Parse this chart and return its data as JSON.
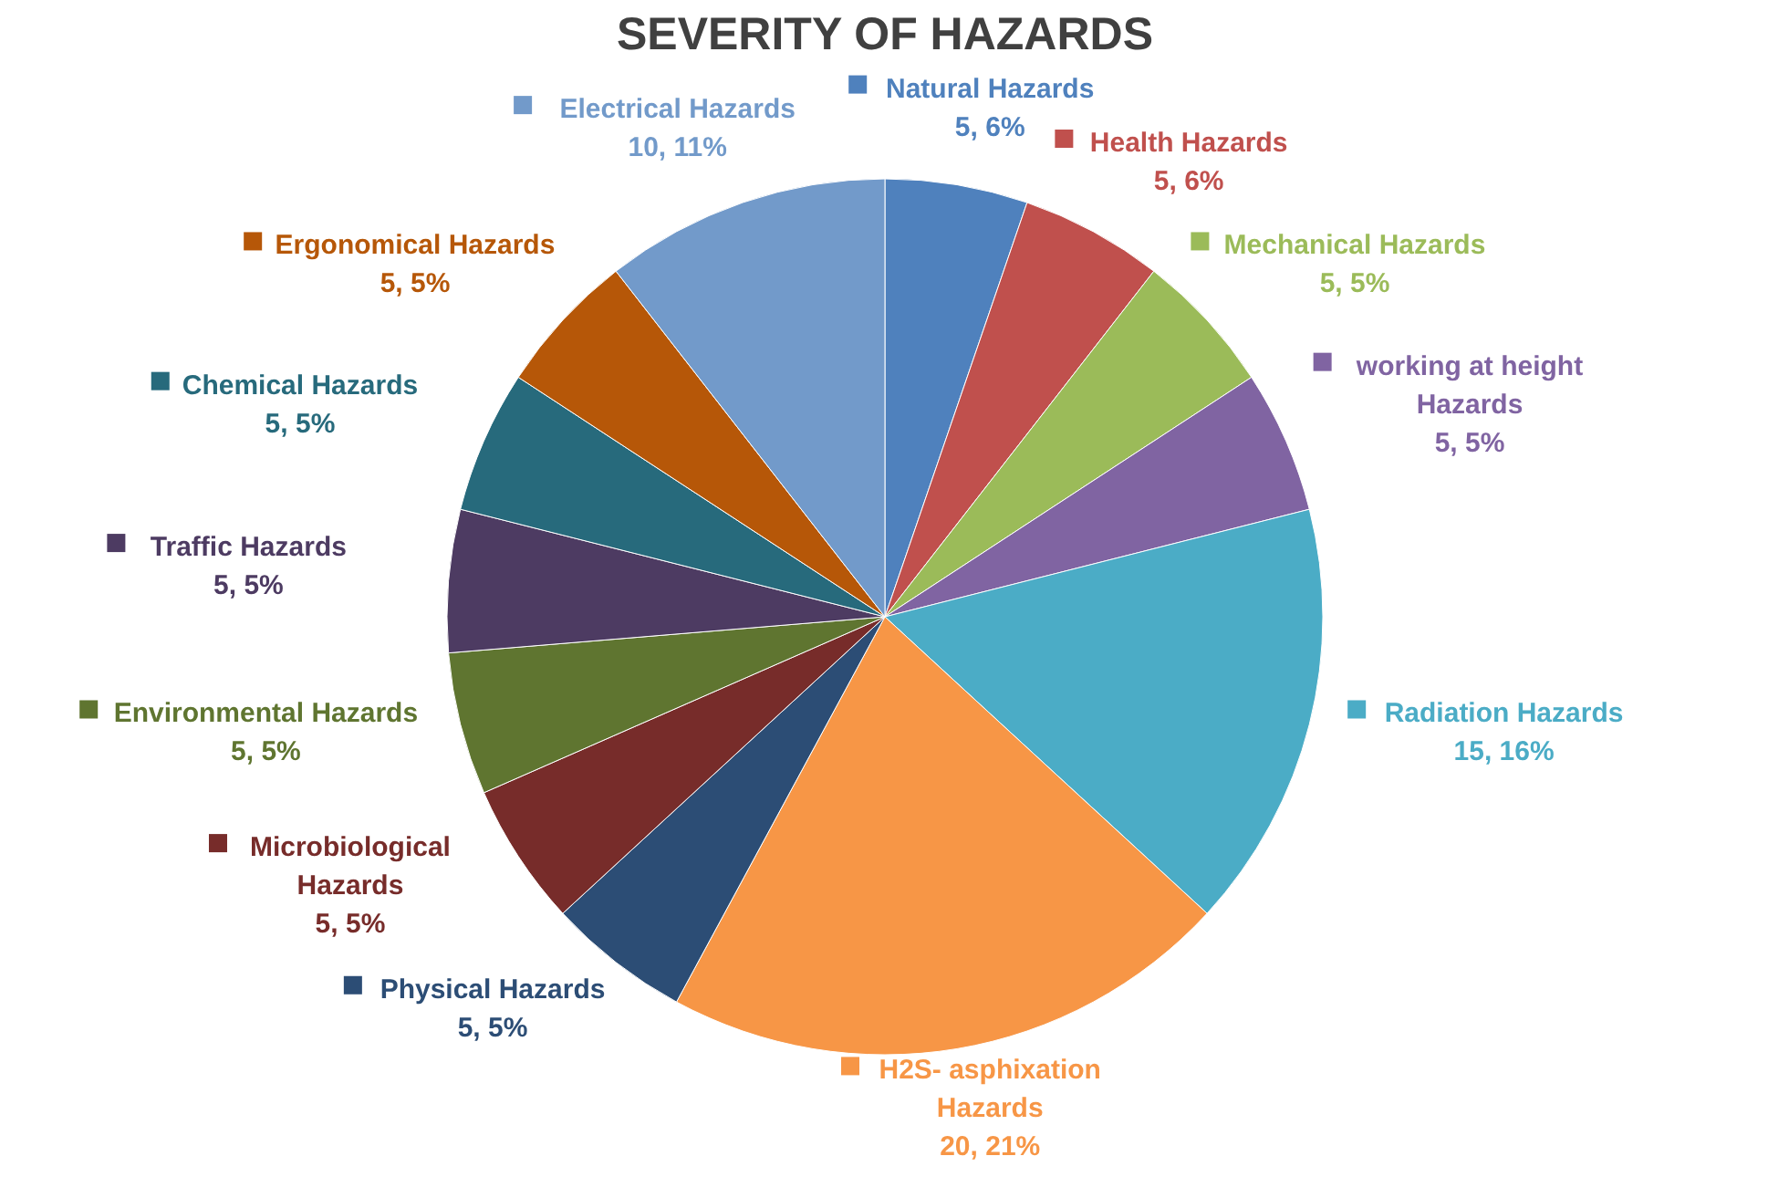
{
  "chart_data": {
    "type": "pie",
    "title": "SEVERITY OF HAZARDS",
    "legend": "top left",
    "categories": [
      "Natural Hazards",
      "Health Hazards",
      "Mechanical Hazards",
      "working at height Hazards",
      "Radiation Hazards",
      "H2S- asphixation Hazards",
      "Physical Hazards",
      "Microbiological Hazards",
      "Environmental Hazards",
      "Traffic Hazards",
      "Chemical Hazards",
      "Ergonomical Hazards",
      "Electrical Hazards"
    ],
    "values": [
      5,
      5,
      5,
      5,
      15,
      20,
      5,
      5,
      5,
      5,
      5,
      5,
      10
    ],
    "value_labels": [
      "5, 6%",
      "5, 6%",
      "5, 5%",
      "5, 5%",
      "15, 16%",
      "20, 21%",
      "5, 5%",
      "5, 5%",
      "5, 5%",
      "5, 5%",
      "5, 5%",
      "5, 5%",
      "10, 11%"
    ],
    "colors": [
      "#4f81bd",
      "#c0504d",
      "#9bbb59",
      "#8064a2",
      "#4bacc6",
      "#f79646",
      "#2c4d75",
      "#772c2a",
      "#5f7530",
      "#4d3b62",
      "#276a7c",
      "#b65708",
      "#729aca"
    ]
  }
}
